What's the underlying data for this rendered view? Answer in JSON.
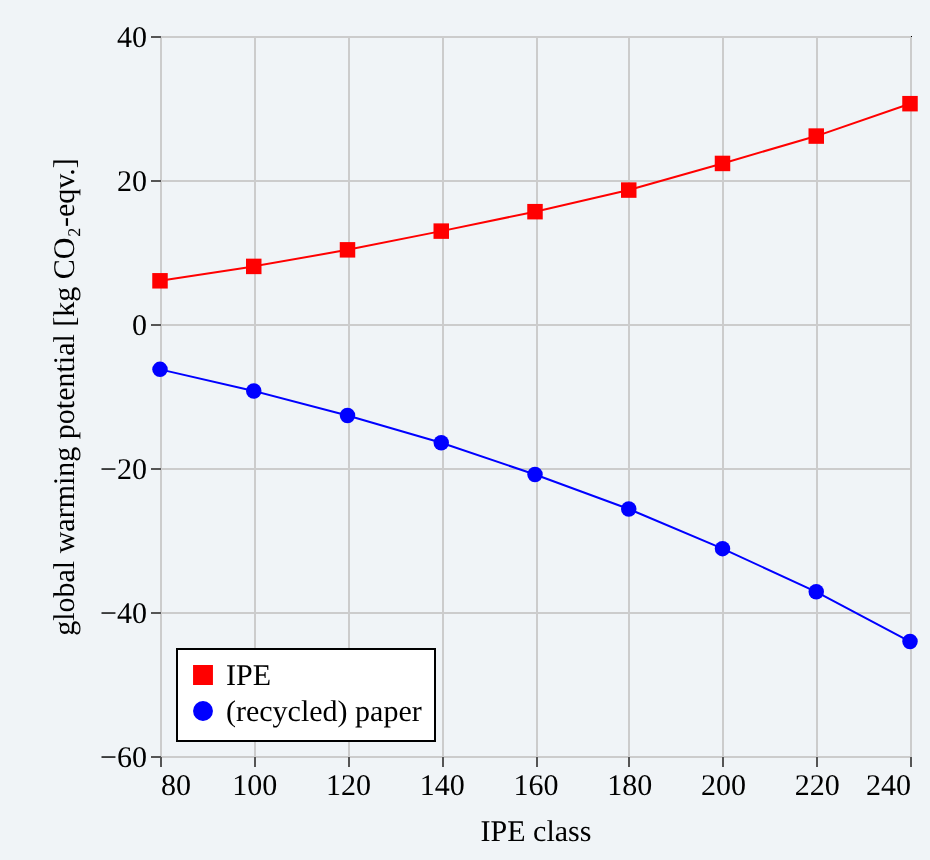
{
  "chart_data": {
    "type": "line",
    "xlabel": "IPE class",
    "ylabel": "global warming potential [kg CO₂-eqv.]",
    "x": [
      80,
      100,
      120,
      140,
      160,
      180,
      200,
      220,
      240
    ],
    "series": [
      {
        "name": "IPE",
        "color": "#ff0000",
        "marker": "square",
        "values": [
          6.0,
          8.0,
          10.3,
          12.9,
          15.6,
          18.6,
          22.3,
          26.1,
          30.6
        ]
      },
      {
        "name": "(recycled) paper",
        "color": "#0000ff",
        "marker": "circle",
        "values": [
          -6.3,
          -9.3,
          -12.7,
          -16.5,
          -20.9,
          -25.7,
          -31.2,
          -37.2,
          -44.1
        ]
      }
    ],
    "xlim": [
      80,
      240
    ],
    "xticks": [
      80,
      100,
      120,
      140,
      160,
      180,
      200,
      220,
      240
    ],
    "ylim": [
      -60,
      40
    ],
    "yticks": [
      -60,
      -40,
      -20,
      0,
      20,
      40
    ],
    "grid": true,
    "legend": "bottom left",
    "line_style": "solid"
  }
}
